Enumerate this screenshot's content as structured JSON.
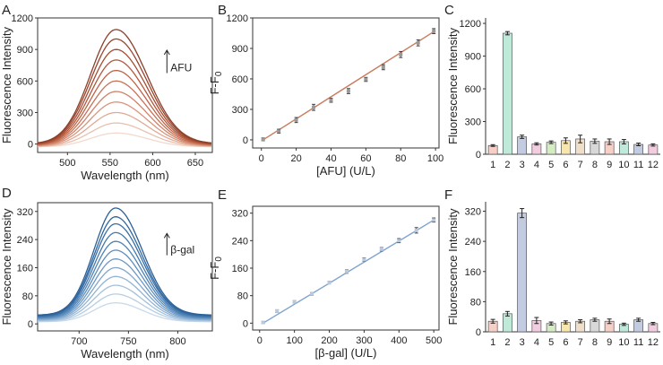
{
  "chart_data": [
    {
      "panel": "A",
      "type": "line",
      "xlabel": "Wavelength (nm)",
      "ylabel": "Fluorescence Intensity",
      "xlim": [
        465,
        670
      ],
      "ylim": [
        -80,
        1200
      ],
      "xticks": [
        500,
        550,
        600,
        650
      ],
      "yticks": [
        0,
        300,
        600,
        900,
        1200
      ],
      "annotation": "AFU",
      "peak_nm": 557,
      "series_peaks": [
        105,
        200,
        300,
        400,
        500,
        600,
        700,
        800,
        900,
        1000,
        1090
      ],
      "colors": [
        "#f2d9cd",
        "#e9c0ae",
        "#e0aa94",
        "#d7957d",
        "#cf8268",
        "#c77256",
        "#bd6448",
        "#b2583c",
        "#a54d33",
        "#98452d",
        "#8c3f29"
      ]
    },
    {
      "panel": "B",
      "type": "scatter",
      "xlabel": "[AFU] (U/L)",
      "ylabel": "F-F0",
      "xlim": [
        -5,
        102
      ],
      "ylim": [
        -80,
        1200
      ],
      "xticks": [
        0,
        20,
        40,
        60,
        80,
        100
      ],
      "yticks": [
        0,
        300,
        600,
        900,
        1200
      ],
      "x": [
        1,
        10,
        20,
        30,
        40,
        50,
        60,
        70,
        80,
        90,
        99
      ],
      "y": [
        5,
        85,
        195,
        320,
        390,
        480,
        595,
        715,
        840,
        955,
        1070
      ],
      "errors": [
        15,
        20,
        25,
        30,
        20,
        25,
        20,
        25,
        30,
        30,
        25
      ],
      "fit": {
        "x": [
          1,
          99
        ],
        "y": [
          0,
          1065
        ]
      },
      "color": "#c97b5c",
      "marker_color": "#999999"
    },
    {
      "panel": "C",
      "type": "bar",
      "ylabel": "Fluorescence Intensity",
      "categories": [
        "1",
        "2",
        "3",
        "4",
        "5",
        "6",
        "7",
        "8",
        "9",
        "10",
        "11",
        "12"
      ],
      "values": [
        80,
        1110,
        160,
        95,
        110,
        125,
        140,
        120,
        115,
        115,
        90,
        85
      ],
      "errors": [
        8,
        15,
        15,
        10,
        12,
        25,
        35,
        20,
        25,
        20,
        12,
        10
      ],
      "ylim": [
        0,
        1250
      ],
      "yticks": [
        0,
        300,
        600,
        900,
        1200
      ],
      "colors": [
        "#f6cfc7",
        "#bfe9d8",
        "#c3cbe1",
        "#f2cde0",
        "#d5ecc3",
        "#f8e6ad",
        "#efdec9",
        "#d8d8d8",
        "#f6cfc7",
        "#bfe9d8",
        "#c3cbe1",
        "#f2cde0"
      ]
    },
    {
      "panel": "D",
      "type": "line",
      "xlabel": "Wavelength (nm)",
      "ylabel": "Fluorescence Intensity",
      "xlim": [
        658,
        835
      ],
      "ylim": [
        -20,
        345
      ],
      "xticks": [
        700,
        750,
        800
      ],
      "yticks": [
        0,
        80,
        160,
        240,
        320
      ],
      "annotation": "β-gal",
      "peak_nm": 737,
      "series_peaks": [
        60,
        85,
        110,
        135,
        160,
        185,
        210,
        235,
        260,
        285,
        305,
        330
      ],
      "colors": [
        "#c8d9ea",
        "#b6cde3",
        "#a3c0db",
        "#91b3d4",
        "#7fa6cc",
        "#6d99c4",
        "#5d8dbd",
        "#4f82b6",
        "#4378ae",
        "#396fa6",
        "#31679e",
        "#2a5f96"
      ]
    },
    {
      "panel": "E",
      "type": "scatter",
      "xlabel": "[β-gal] (U/L)",
      "ylabel": "F-F0",
      "xlim": [
        -20,
        515
      ],
      "ylim": [
        -20,
        340
      ],
      "xticks": [
        0,
        100,
        200,
        300,
        400,
        500
      ],
      "yticks": [
        0,
        80,
        160,
        240,
        320
      ],
      "x": [
        10,
        50,
        100,
        150,
        200,
        250,
        300,
        350,
        400,
        450,
        500
      ],
      "y": [
        2,
        35,
        62,
        85,
        118,
        150,
        185,
        215,
        240,
        270,
        300
      ],
      "errors": [
        3,
        4,
        4,
        4,
        4,
        5,
        5,
        5,
        6,
        8,
        6
      ],
      "fit": {
        "x": [
          10,
          500
        ],
        "y": [
          0,
          300
        ]
      },
      "color": "#7ea3cf",
      "marker_color": "#b9c9de"
    },
    {
      "panel": "F",
      "type": "bar",
      "ylabel": "Fluorescence Intensity",
      "categories": [
        "1",
        "2",
        "3",
        "4",
        "5",
        "6",
        "7",
        "8",
        "9",
        "10",
        "11",
        "12"
      ],
      "values": [
        28,
        48,
        315,
        30,
        22,
        25,
        28,
        32,
        28,
        20,
        32,
        22
      ],
      "errors": [
        5,
        6,
        12,
        8,
        4,
        4,
        4,
        4,
        6,
        3,
        4,
        3
      ],
      "ylim": [
        0,
        345
      ],
      "yticks": [
        0,
        80,
        160,
        240,
        320
      ],
      "colors": [
        "#f6cfc7",
        "#bfe9d8",
        "#c3cbe1",
        "#f2cde0",
        "#d5ecc3",
        "#f8e6ad",
        "#efdec9",
        "#d8d8d8",
        "#f6cfc7",
        "#bfe9d8",
        "#c3cbe1",
        "#f2cde0"
      ]
    }
  ]
}
